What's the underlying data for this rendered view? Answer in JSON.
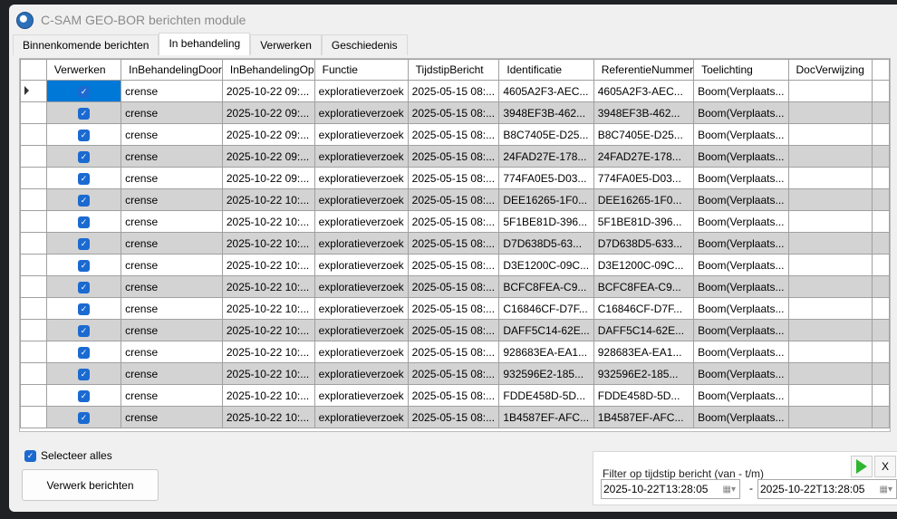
{
  "window": {
    "title": "C-SAM GEO-BOR berichten module"
  },
  "tabs": [
    {
      "label": "Binnenkomende berichten"
    },
    {
      "label": "In behandeling",
      "active": true
    },
    {
      "label": "Verwerken"
    },
    {
      "label": "Geschiedenis"
    }
  ],
  "grid": {
    "columns": [
      "",
      "Verwerken",
      "InBehandelingDoor",
      "InBehandelingOp",
      "Functie",
      "TijdstipBericht",
      "Identificatie",
      "ReferentieNummer",
      "Toelichting",
      "DocVerwijzing",
      ""
    ],
    "columns_display": [
      "",
      "Verwerken",
      "InBehandelingDo",
      "InBehandelingOp",
      "Functie",
      "TijdstipBericht",
      "Identificatie",
      "ReferentieNumme",
      "Toelichting",
      "DocVerwijzing",
      ""
    ],
    "rows": [
      {
        "checked": true,
        "door": "crense",
        "op": "2025-10-22 09:...",
        "functie": "exploratieverzoek",
        "tijdstip": "2025-05-15 08:...",
        "id": "4605A2F3-AEC...",
        "ref": "4605A2F3-AEC...",
        "toel": "Boom(Verplaats...",
        "doc": ""
      },
      {
        "checked": true,
        "door": "crense",
        "op": "2025-10-22 09:...",
        "functie": "exploratieverzoek",
        "tijdstip": "2025-05-15 08:...",
        "id": "3948EF3B-462...",
        "ref": "3948EF3B-462...",
        "toel": "Boom(Verplaats...",
        "doc": ""
      },
      {
        "checked": true,
        "door": "crense",
        "op": "2025-10-22 09:...",
        "functie": "exploratieverzoek",
        "tijdstip": "2025-05-15 08:...",
        "id": "B8C7405E-D25...",
        "ref": "B8C7405E-D25...",
        "toel": "Boom(Verplaats...",
        "doc": ""
      },
      {
        "checked": true,
        "door": "crense",
        "op": "2025-10-22 09:...",
        "functie": "exploratieverzoek",
        "tijdstip": "2025-05-15 08:...",
        "id": "24FAD27E-178...",
        "ref": "24FAD27E-178...",
        "toel": "Boom(Verplaats...",
        "doc": ""
      },
      {
        "checked": true,
        "door": "crense",
        "op": "2025-10-22 09:...",
        "functie": "exploratieverzoek",
        "tijdstip": "2025-05-15 08:...",
        "id": "774FA0E5-D03...",
        "ref": "774FA0E5-D03...",
        "toel": "Boom(Verplaats...",
        "doc": ""
      },
      {
        "checked": true,
        "door": "crense",
        "op": "2025-10-22 10:...",
        "functie": "exploratieverzoek",
        "tijdstip": "2025-05-15 08:...",
        "id": "DEE16265-1F0...",
        "ref": "DEE16265-1F0...",
        "toel": "Boom(Verplaats...",
        "doc": ""
      },
      {
        "checked": true,
        "door": "crense",
        "op": "2025-10-22 10:...",
        "functie": "exploratieverzoek",
        "tijdstip": "2025-05-15 08:...",
        "id": "5F1BE81D-396...",
        "ref": "5F1BE81D-396...",
        "toel": "Boom(Verplaats...",
        "doc": ""
      },
      {
        "checked": true,
        "door": "crense",
        "op": "2025-10-22 10:...",
        "functie": "exploratieverzoek",
        "tijdstip": "2025-05-15 08:...",
        "id": "D7D638D5-63...",
        "ref": "D7D638D5-633...",
        "toel": "Boom(Verplaats...",
        "doc": ""
      },
      {
        "checked": true,
        "door": "crense",
        "op": "2025-10-22 10:...",
        "functie": "exploratieverzoek",
        "tijdstip": "2025-05-15 08:...",
        "id": "D3E1200C-09C...",
        "ref": "D3E1200C-09C...",
        "toel": "Boom(Verplaats...",
        "doc": ""
      },
      {
        "checked": true,
        "door": "crense",
        "op": "2025-10-22 10:...",
        "functie": "exploratieverzoek",
        "tijdstip": "2025-05-15 08:...",
        "id": "BCFC8FEA-C9...",
        "ref": "BCFC8FEA-C9...",
        "toel": "Boom(Verplaats...",
        "doc": ""
      },
      {
        "checked": true,
        "door": "crense",
        "op": "2025-10-22 10:...",
        "functie": "exploratieverzoek",
        "tijdstip": "2025-05-15 08:...",
        "id": "C16846CF-D7F...",
        "ref": "C16846CF-D7F...",
        "toel": "Boom(Verplaats...",
        "doc": ""
      },
      {
        "checked": true,
        "door": "crense",
        "op": "2025-10-22 10:...",
        "functie": "exploratieverzoek",
        "tijdstip": "2025-05-15 08:...",
        "id": "DAFF5C14-62E...",
        "ref": "DAFF5C14-62E...",
        "toel": "Boom(Verplaats...",
        "doc": ""
      },
      {
        "checked": true,
        "door": "crense",
        "op": "2025-10-22 10:...",
        "functie": "exploratieverzoek",
        "tijdstip": "2025-05-15 08:...",
        "id": "928683EA-EA1...",
        "ref": "928683EA-EA1...",
        "toel": "Boom(Verplaats...",
        "doc": ""
      },
      {
        "checked": true,
        "door": "crense",
        "op": "2025-10-22 10:...",
        "functie": "exploratieverzoek",
        "tijdstip": "2025-05-15 08:...",
        "id": "932596E2-185...",
        "ref": "932596E2-185...",
        "toel": "Boom(Verplaats...",
        "doc": ""
      },
      {
        "checked": true,
        "door": "crense",
        "op": "2025-10-22 10:...",
        "functie": "exploratieverzoek",
        "tijdstip": "2025-05-15 08:...",
        "id": "FDDE458D-5D...",
        "ref": "FDDE458D-5D...",
        "toel": "Boom(Verplaats...",
        "doc": ""
      },
      {
        "checked": true,
        "door": "crense",
        "op": "2025-10-22 10:...",
        "functie": "exploratieverzoek",
        "tijdstip": "2025-05-15 08:...",
        "id": "1B4587EF-AFC...",
        "ref": "1B4587EF-AFC...",
        "toel": "Boom(Verplaats...",
        "doc": ""
      }
    ]
  },
  "bottom": {
    "select_all_label": "Selecteer alles",
    "select_all_checked": true,
    "process_button": "Verwerk berichten",
    "filter": {
      "label": "Filter op tijdstip bericht (van - t/m)",
      "from": "2025-10-22T13:28:05",
      "to": "2025-10-22T13:28:05",
      "separator": "-",
      "clear_label": "X"
    }
  },
  "colors": {
    "accent": "#0078d7",
    "checkbox": "#1b6ad0",
    "alt_row": "#d3d3d3",
    "apply_green": "#2fb52f"
  }
}
